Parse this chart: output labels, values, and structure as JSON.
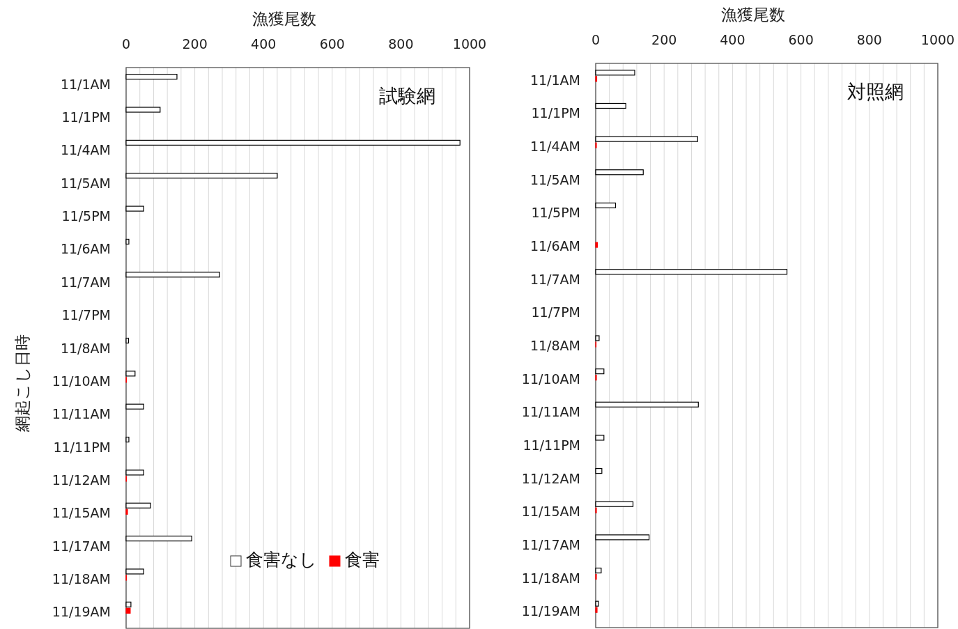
{
  "chart_data": [
    {
      "type": "bar",
      "orientation": "horizontal",
      "title": "試験網",
      "xlabel": "漁獲尾数",
      "ylabel": "網起こし日時",
      "categories": [
        "11/1AM",
        "11/1PM",
        "11/4AM",
        "11/5AM",
        "11/5PM",
        "11/6AM",
        "11/7AM",
        "11/7PM",
        "11/8AM",
        "11/10AM",
        "11/11AM",
        "11/11PM",
        "11/12AM",
        "11/15AM",
        "11/17AM",
        "11/18AM",
        "11/19AM"
      ],
      "series": [
        {
          "name": "食害なし",
          "color": "#ffffff",
          "values": [
            148,
            99,
            972,
            440,
            51,
            8,
            272,
            0,
            7,
            26,
            51,
            8,
            51,
            71,
            191,
            51,
            14
          ]
        },
        {
          "name": "食害",
          "color": "#ff0000",
          "values": [
            0,
            0,
            0,
            0,
            0,
            0,
            0,
            0,
            0,
            1,
            0,
            0,
            1,
            4,
            0,
            1,
            12
          ]
        }
      ],
      "xlim": [
        0,
        1000
      ],
      "xticks": [
        0,
        {
          "value": 40,
          "label": null
        },
        {
          "value": 80,
          "label": null
        },
        {
          "value": 120,
          "label": null
        },
        {
          "value": 160,
          "label": null
        },
        200,
        {
          "value": 240,
          "label": null
        },
        {
          "value": 280,
          "label": null
        },
        {
          "value": 320,
          "label": null
        },
        {
          "value": 360,
          "label": null
        },
        400,
        {
          "value": 440,
          "label": null
        },
        {
          "value": 480,
          "label": null
        },
        {
          "value": 520,
          "label": null
        },
        {
          "value": 560,
          "label": null
        },
        600,
        {
          "value": 640,
          "label": null
        },
        {
          "value": 680,
          "label": null
        },
        {
          "value": 720,
          "label": null
        },
        {
          "value": 760,
          "label": null
        },
        800,
        {
          "value": 840,
          "label": null
        },
        {
          "value": 880,
          "label": null
        },
        {
          "value": 920,
          "label": null
        },
        {
          "value": 960,
          "label": null
        },
        1000
      ],
      "grid": "x",
      "legend": "bottom"
    },
    {
      "type": "bar",
      "orientation": "horizontal",
      "title": "対照網",
      "xlabel": "漁獲尾数",
      "categories": [
        "11/1AM",
        "11/1PM",
        "11/4AM",
        "11/5AM",
        "11/5PM",
        "11/6AM",
        "11/7AM",
        "11/7PM",
        "11/8AM",
        "11/10AM",
        "11/11AM",
        "11/11PM",
        "11/12AM",
        "11/15AM",
        "11/17AM",
        "11/18AM",
        "11/19AM"
      ],
      "series": [
        {
          "color": "#ffffff",
          "values": [
            114,
            88,
            298,
            139,
            58,
            0,
            559,
            0,
            10,
            24,
            300,
            24,
            18,
            109,
            156,
            16,
            8
          ]
        },
        {
          "color": "#ff0000",
          "values": [
            3,
            0,
            2,
            0,
            0,
            5,
            0,
            0,
            1,
            2,
            0,
            0,
            0,
            2,
            0,
            2,
            4
          ]
        }
      ],
      "xlim": [
        0,
        1000
      ],
      "xticks": [
        0,
        {
          "value": 40,
          "label": null
        },
        {
          "value": 80,
          "label": null
        },
        {
          "value": 120,
          "label": null
        },
        {
          "value": 160,
          "label": null
        },
        200,
        {
          "value": 240,
          "label": null
        },
        {
          "value": 280,
          "label": null
        },
        {
          "value": 320,
          "label": null
        },
        {
          "value": 360,
          "label": null
        },
        400,
        {
          "value": 440,
          "label": null
        },
        {
          "value": 480,
          "label": null
        },
        {
          "value": 520,
          "label": null
        },
        {
          "value": 560,
          "label": null
        },
        600,
        {
          "value": 640,
          "label": null
        },
        {
          "value": 680,
          "label": null
        },
        {
          "value": 720,
          "label": null
        },
        {
          "value": 760,
          "label": null
        },
        800,
        {
          "value": 840,
          "label": null
        },
        {
          "value": 880,
          "label": null
        },
        {
          "value": 920,
          "label": null
        },
        {
          "value": 960,
          "label": null
        },
        1000
      ],
      "grid": "x"
    }
  ]
}
